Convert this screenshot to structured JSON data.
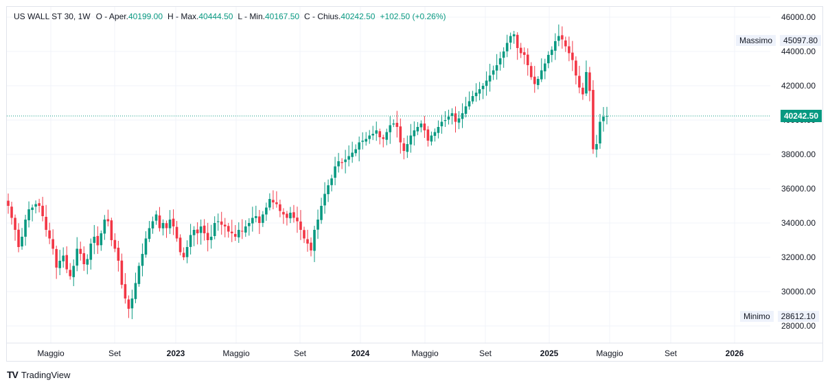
{
  "legend": {
    "symbol": "US WALL ST 30, 1W",
    "open_key": "O - Aper.",
    "open_val": "40199.00",
    "high_key": "H - Max.",
    "high_val": "40444.50",
    "low_key": "L - Min.",
    "low_val": "40167.50",
    "close_key": "C - Chius.",
    "close_val": "40242.50",
    "change": "+102.50 (+0.26%)"
  },
  "markers": {
    "high_label": "Massimo",
    "high_value": "45097.80",
    "low_label": "Minimo",
    "low_value": "28612.10",
    "last_price": "40242.50"
  },
  "brand": {
    "name": "TradingView",
    "logo": "TV"
  },
  "colors": {
    "up": "#089981",
    "down": "#f23645",
    "grid": "#f0f3fa",
    "last_line": "#089981"
  },
  "chart_data": {
    "type": "candlestick",
    "timeframe": "1W",
    "y_ticks": [
      28000,
      30000,
      32000,
      34000,
      36000,
      38000,
      40000,
      42000,
      44000,
      46000
    ],
    "y_tick_labels": [
      "28000.00",
      "30000.00",
      "32000.00",
      "34000.00",
      "36000.00",
      "38000.00",
      "40000.00",
      "42000.00",
      "44000.00",
      "46000.00"
    ],
    "ylim": [
      27000,
      46600
    ],
    "x_labels": [
      {
        "label": "Maggio",
        "date": "2022-05"
      },
      {
        "label": "Set",
        "date": "2022-09"
      },
      {
        "label": "2023",
        "date": "2023-01"
      },
      {
        "label": "Maggio",
        "date": "2023-05"
      },
      {
        "label": "Set",
        "date": "2023-09"
      },
      {
        "label": "2024",
        "date": "2024-01"
      },
      {
        "label": "Maggio",
        "date": "2024-05"
      },
      {
        "label": "Set",
        "date": "2024-09"
      },
      {
        "label": "2025",
        "date": "2025-01"
      },
      {
        "label": "Maggio",
        "date": "2025-05"
      },
      {
        "label": "Set",
        "date": "2025-09"
      },
      {
        "label": "2026",
        "date": "2026-01"
      }
    ],
    "close": [
      35000,
      34300,
      33600,
      32600,
      33200,
      34200,
      34800,
      34900,
      35100,
      35000,
      34400,
      33600,
      33100,
      32500,
      31400,
      31800,
      32100,
      31300,
      30900,
      31500,
      32500,
      32200,
      31600,
      31900,
      32800,
      33200,
      32700,
      33400,
      34200,
      34100,
      33000,
      32500,
      31800,
      30400,
      29600,
      29000,
      29600,
      30500,
      31500,
      32200,
      33100,
      33700,
      34100,
      34500,
      33700,
      34000,
      33700,
      34200,
      33800,
      33100,
      32300,
      32000,
      32600,
      33300,
      33600,
      33400,
      33800,
      33400,
      33000,
      33200,
      34000,
      34100,
      33900,
      33800,
      33500,
      33400,
      33200,
      33600,
      33500,
      33800,
      34000,
      34300,
      34400,
      34000,
      34500,
      34900,
      35400,
      35200,
      35100,
      34700,
      34500,
      34300,
      34600,
      34300,
      34100,
      33600,
      33100,
      32800,
      32400,
      33600,
      34200,
      35000,
      35700,
      36200,
      36600,
      37300,
      37600,
      37500,
      37700,
      37900,
      38100,
      38300,
      38700,
      38800,
      38900,
      39100,
      39200,
      39400,
      39000,
      38900,
      39300,
      39700,
      39800,
      39600,
      38700,
      38200,
      38600,
      39100,
      39400,
      39600,
      39800,
      39400,
      38800,
      39100,
      39300,
      39600,
      39900,
      40000,
      40200,
      40400,
      39900,
      40100,
      40400,
      40800,
      41100,
      41400,
      41600,
      41800,
      42000,
      42300,
      42600,
      42900,
      43200,
      43600,
      44000,
      44500,
      44900,
      45000,
      44200,
      43900,
      43800,
      43200,
      42500,
      42100,
      42400,
      42900,
      43300,
      43800,
      44100,
      44600,
      44900,
      44700,
      44300,
      43900,
      43500,
      42600,
      41900,
      41500,
      42800,
      41700,
      38300,
      38600,
      39900,
      40199,
      40242.5
    ],
    "last_close": 40242.5,
    "period_high": 45097.8,
    "period_low": 28612.1
  }
}
